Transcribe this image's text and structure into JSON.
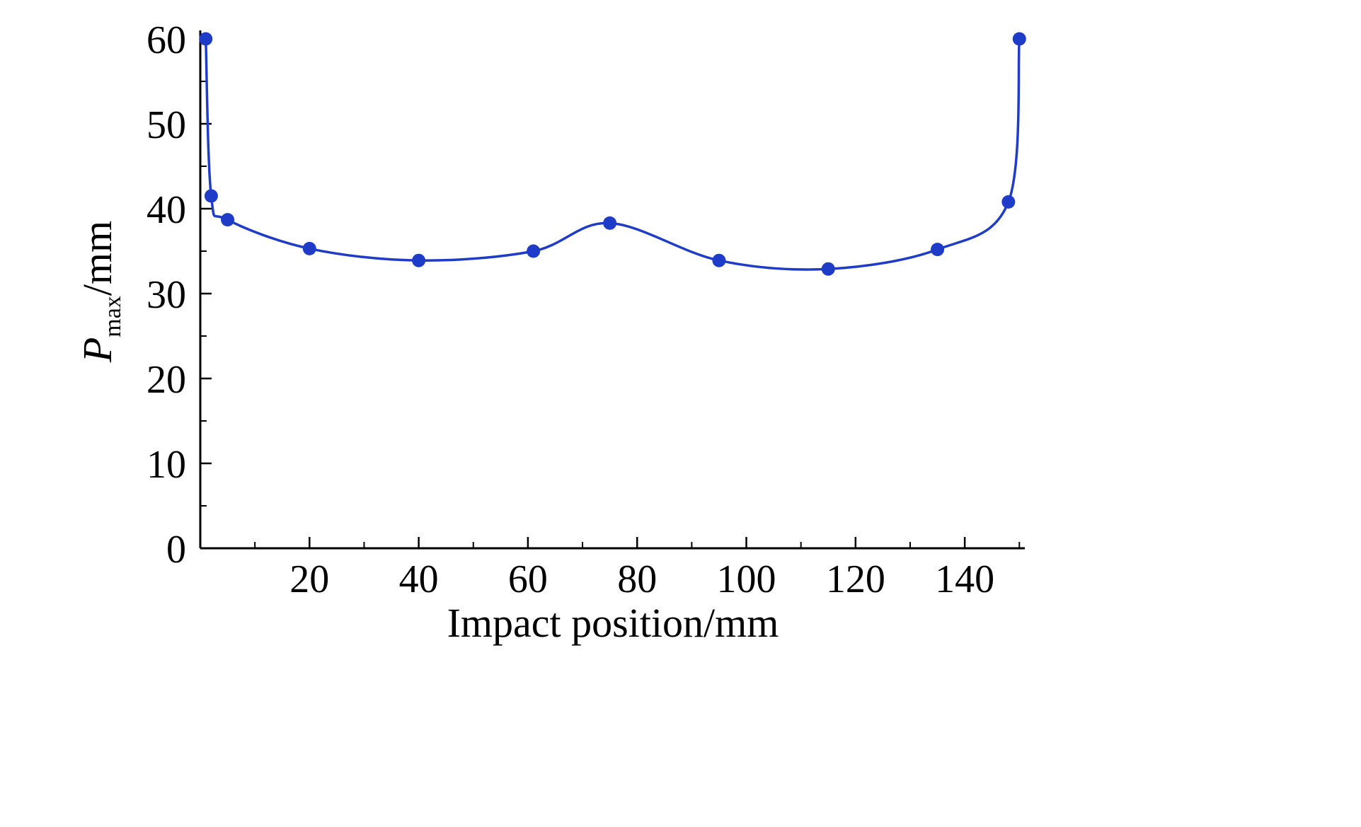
{
  "chart_data": {
    "type": "line",
    "title": "",
    "xlabel": "Impact position/mm",
    "ylabel": "P_max/mm",
    "ylabel_parts": {
      "italic": "P",
      "sub": "max",
      "rest": "/mm"
    },
    "series": [
      {
        "name": "Pmax",
        "x": [
          1,
          2,
          5,
          20,
          40,
          61,
          75,
          95,
          115,
          135,
          148,
          150
        ],
        "y": [
          60,
          41.5,
          38.7,
          35.3,
          33.9,
          35.0,
          38.3,
          33.9,
          32.9,
          35.2,
          40.8,
          60
        ]
      }
    ],
    "xlim": [
      0,
      151
    ],
    "ylim": [
      0,
      60
    ],
    "x_ticks": [
      20,
      40,
      60,
      80,
      100,
      120,
      140
    ],
    "y_ticks": [
      0,
      10,
      20,
      30,
      40,
      50,
      60
    ],
    "x_minor_step": 10,
    "y_minor_step": 5,
    "line_color": "#1e3cc8",
    "marker": "circle",
    "grid": false,
    "legend_position": "none",
    "axis_color": "#000000"
  }
}
